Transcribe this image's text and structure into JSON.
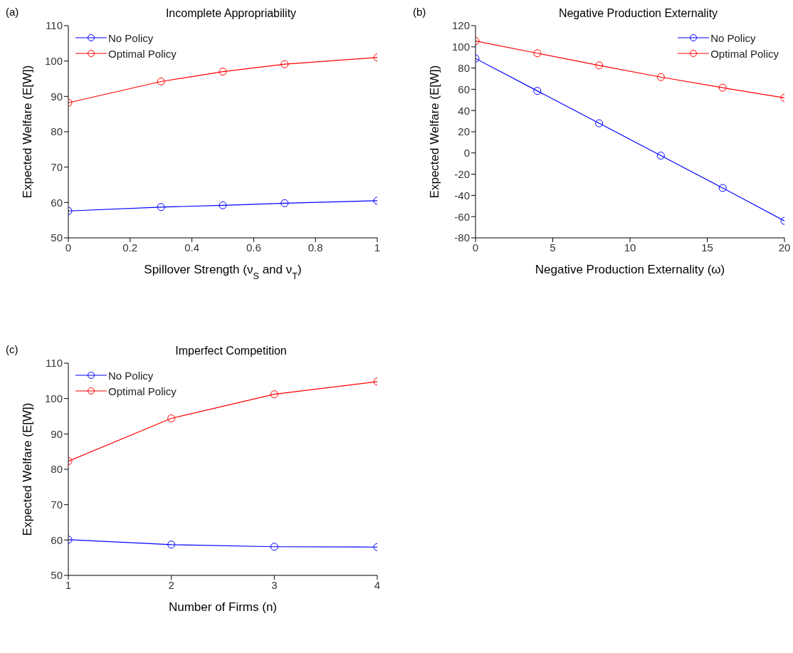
{
  "chart_data": [
    {
      "type": "line",
      "title": "Incomplete Appropriability",
      "xlabel": "Spillover Strength (ν$_{S}$ and ν$_{T}$)",
      "ylabel": "Expected Welfare (E[W])",
      "annotations": [
        "(a)"
      ],
      "x": [
        0,
        0.3,
        0.5,
        0.7,
        1
      ],
      "xlim": [
        0,
        1
      ],
      "xticks": [
        0,
        0.2,
        0.4,
        0.6,
        0.8,
        1
      ],
      "ylim": [
        50,
        110
      ],
      "yticks": [
        50,
        60,
        70,
        80,
        90,
        100,
        110
      ],
      "grid": false,
      "legend": "top left",
      "marker": "circle",
      "line_style": "solid",
      "series": [
        {
          "name": "No Policy",
          "color": "#0000ff",
          "values": [
            57.6,
            58.7,
            59.2,
            59.8,
            60.5
          ]
        },
        {
          "name": "Optimal Policy",
          "color": "#ff0000",
          "values": [
            88.2,
            94.2,
            97.0,
            99.1,
            101.0
          ]
        }
      ]
    },
    {
      "type": "line",
      "title": "Negative Production Externality",
      "xlabel": "Negative Production Externality (ω)",
      "ylabel": "Expected Welfare (E[W])",
      "annotations": [
        "(b)"
      ],
      "x": [
        0,
        4,
        8,
        12,
        16,
        20
      ],
      "xlim": [
        0,
        20
      ],
      "xticks": [
        0,
        5,
        10,
        15,
        20
      ],
      "ylim": [
        -80,
        120
      ],
      "yticks": [
        -80,
        -60,
        -40,
        -20,
        0,
        20,
        40,
        60,
        80,
        100,
        120
      ],
      "grid": false,
      "legend": "top right",
      "marker": "circle",
      "line_style": "solid",
      "series": [
        {
          "name": "No Policy",
          "color": "#0000ff",
          "values": [
            89,
            58.5,
            28,
            -2.5,
            -33,
            -64
          ]
        },
        {
          "name": "Optimal Policy",
          "color": "#ff0000",
          "values": [
            105.5,
            94,
            82.5,
            71.5,
            61.5,
            52
          ]
        }
      ]
    },
    {
      "type": "line",
      "title": "Imperfect Competition",
      "xlabel": "Number of Firms (n)",
      "ylabel": "Expected Welfare (E[W])",
      "annotations": [
        "(c)"
      ],
      "x": [
        1,
        2,
        3,
        4
      ],
      "xlim": [
        1,
        4
      ],
      "xticks": [
        1,
        2,
        3,
        4
      ],
      "ylim": [
        50,
        110
      ],
      "yticks": [
        50,
        60,
        70,
        80,
        90,
        100,
        110
      ],
      "grid": false,
      "legend": "top left",
      "marker": "circle",
      "line_style": "solid",
      "series": [
        {
          "name": "No Policy",
          "color": "#0000ff",
          "values": [
            60.1,
            58.7,
            58.1,
            58.0
          ]
        },
        {
          "name": "Optimal Policy",
          "color": "#ff0000",
          "values": [
            82.3,
            94.4,
            101.2,
            104.8
          ]
        }
      ]
    }
  ]
}
